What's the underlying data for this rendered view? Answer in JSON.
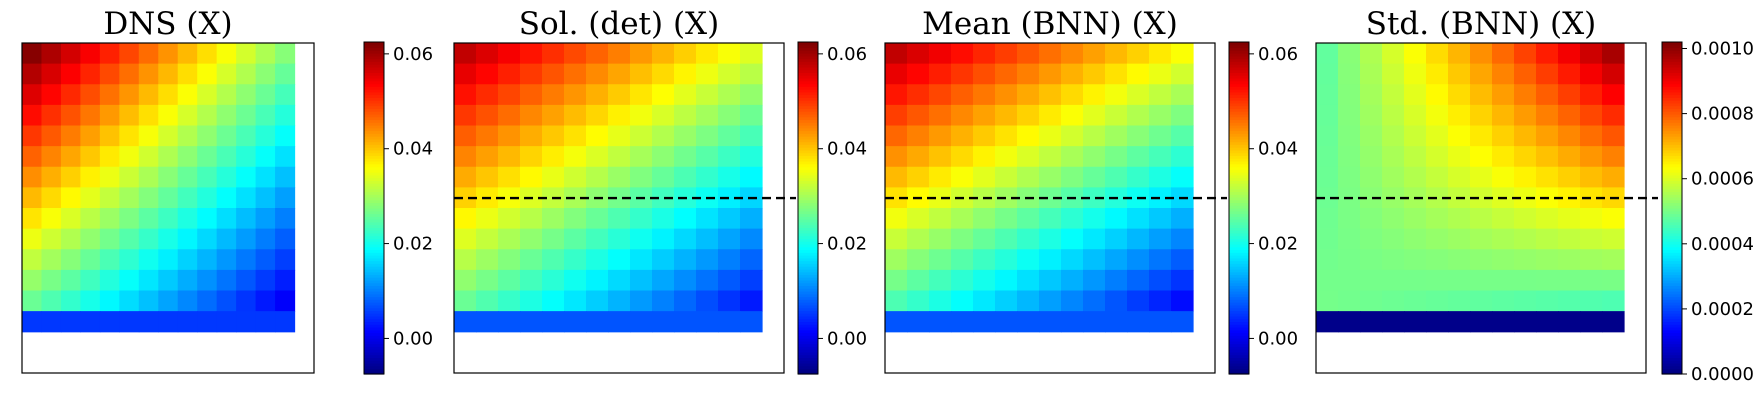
{
  "chart_data": [
    {
      "type": "heatmap",
      "title": "DNS (X)",
      "colorbar": {
        "min": -0.0075,
        "max": 0.0625,
        "ticks": [
          0.0,
          0.02,
          0.04,
          0.06
        ],
        "tick_labels": [
          "0.00",
          "0.02",
          "0.04",
          "0.06"
        ],
        "colormap": "jet"
      },
      "grid": {
        "rows": 16,
        "cols": 15,
        "data_rows": 14,
        "data_cols": 14
      },
      "field": {
        "corner": 0.062,
        "lower_left": 0.026,
        "upper_right": 0.028,
        "lower_right": 0.001,
        "bottom_row": 0.005
      },
      "dashed_line": null
    },
    {
      "type": "heatmap",
      "title": "Sol. (det) (X)",
      "colorbar": {
        "min": -0.0075,
        "max": 0.0625,
        "ticks": [
          0.0,
          0.02,
          0.04,
          0.06
        ],
        "tick_labels": [
          "0.00",
          "0.02",
          "0.04",
          "0.06"
        ],
        "colormap": "jet"
      },
      "grid": {
        "rows": 16,
        "cols": 15,
        "data_rows": 14,
        "data_cols": 14
      },
      "field": {
        "corner": 0.058,
        "lower_left": 0.026,
        "upper_right": 0.034,
        "lower_right": 0.003,
        "bottom_row": 0.007
      },
      "dashed_line": {
        "row_fraction": 0.47
      }
    },
    {
      "type": "heatmap",
      "title": "Mean (BNN) (X)",
      "colorbar": {
        "min": -0.0075,
        "max": 0.0625,
        "ticks": [
          0.0,
          0.02,
          0.04,
          0.06
        ],
        "tick_labels": [
          "0.00",
          "0.02",
          "0.04",
          "0.06"
        ],
        "colormap": "jet"
      },
      "grid": {
        "rows": 16,
        "cols": 15,
        "data_rows": 14,
        "data_cols": 14
      },
      "field": {
        "corner": 0.058,
        "lower_left": 0.024,
        "upper_right": 0.036,
        "lower_right": 0.002,
        "bottom_row": 0.007
      },
      "dashed_line": {
        "row_fraction": 0.47
      }
    },
    {
      "type": "heatmap",
      "title": "Std. (BNN) (X)",
      "colorbar": {
        "min": 0.0,
        "max": 0.00102,
        "ticks": [
          0.0,
          0.0002,
          0.0004,
          0.0006,
          0.0008,
          0.001
        ],
        "tick_labels": [
          "0.0000",
          "0.0002",
          "0.0004",
          "0.0006",
          "0.0008",
          "0.0010"
        ],
        "colormap": "jet"
      },
      "grid": {
        "rows": 16,
        "cols": 15,
        "data_rows": 14,
        "data_cols": 14
      },
      "field": {
        "corner": 0.00048,
        "lower_left": 0.0005,
        "upper_right": 0.00098,
        "lower_right": 0.00046,
        "bottom_row": 1e-05
      },
      "dashed_line": {
        "row_fraction": 0.47
      }
    }
  ]
}
